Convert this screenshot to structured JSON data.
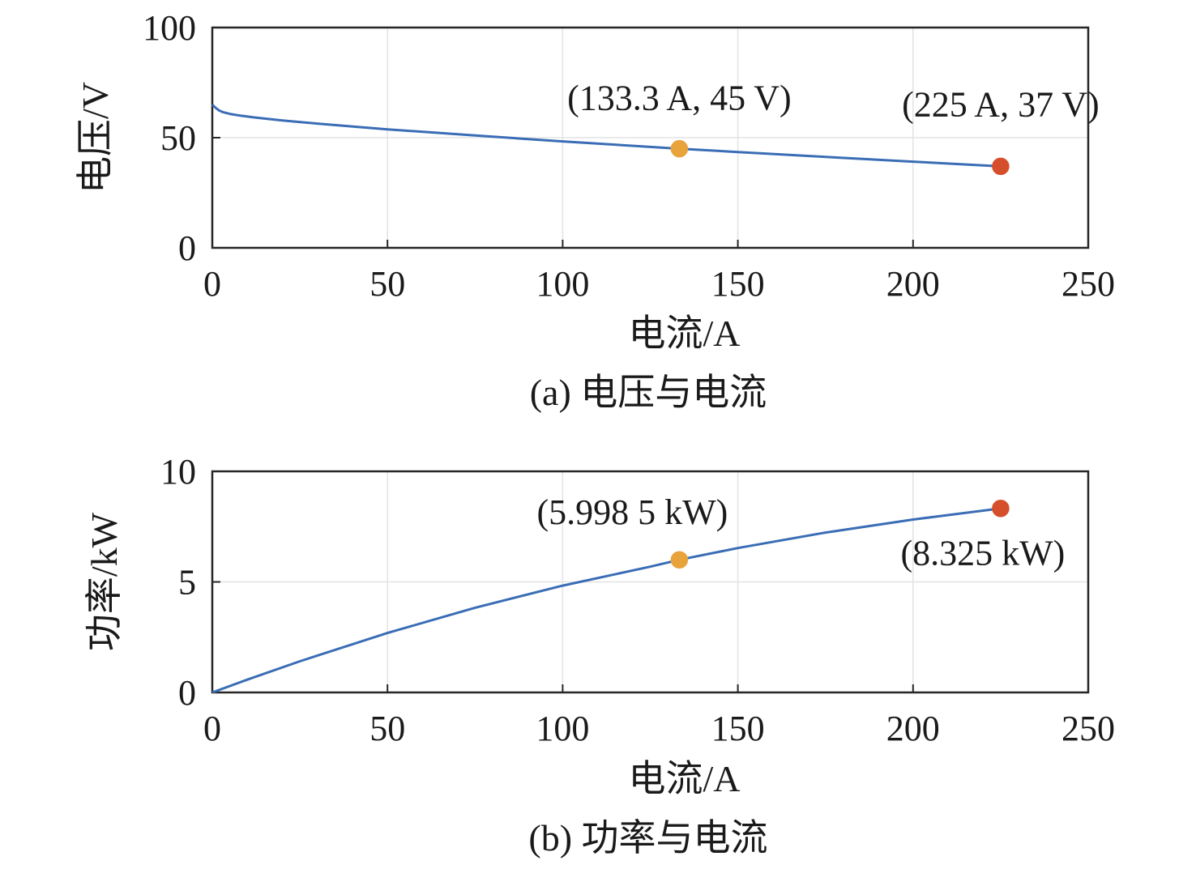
{
  "chart_data": [
    {
      "type": "line",
      "caption": "(a) 电压与电流",
      "xlabel": "电流/A",
      "ylabel": "电压/V",
      "xlim": [
        0,
        250
      ],
      "ylim": [
        0,
        100
      ],
      "xticks": [
        0,
        50,
        100,
        150,
        200,
        250
      ],
      "yticks": [
        0,
        50,
        100
      ],
      "grid": true,
      "line_color": "#3a6db5",
      "series": [
        {
          "x": [
            0,
            1,
            2,
            3,
            5,
            8,
            12,
            20,
            30,
            50,
            75,
            100,
            133.3,
            150,
            175,
            200,
            225
          ],
          "y": [
            65,
            63.5,
            62.3,
            61.6,
            60.8,
            60.0,
            59.2,
            57.8,
            56.4,
            53.8,
            51.0,
            48.3,
            45,
            43.5,
            41.3,
            39.1,
            37
          ]
        }
      ],
      "markers": [
        {
          "x": 133.3,
          "y": 45,
          "color": "#e8a33b",
          "label": "(133.3 A, 45 V)"
        },
        {
          "x": 225,
          "y": 37,
          "color": "#d64f2c",
          "label": "(225 A, 37 V)"
        }
      ]
    },
    {
      "type": "line",
      "caption": "(b) 功率与电流",
      "xlabel": "电流/A",
      "ylabel": "功率/kW",
      "xlim": [
        0,
        250
      ],
      "ylim": [
        0,
        10
      ],
      "xticks": [
        0,
        50,
        100,
        150,
        200,
        250
      ],
      "yticks": [
        0,
        5,
        10
      ],
      "grid": true,
      "line_color": "#3a6db5",
      "series": [
        {
          "x": [
            0,
            10,
            25,
            50,
            75,
            100,
            125,
            133.3,
            150,
            175,
            200,
            225
          ],
          "y": [
            0,
            0.58,
            1.41,
            2.69,
            3.83,
            4.83,
            5.69,
            5.9985,
            6.53,
            7.23,
            7.82,
            8.325
          ]
        }
      ],
      "markers": [
        {
          "x": 133.3,
          "y": 5.9985,
          "color": "#e8a33b",
          "label": "(5.998 5 kW)"
        },
        {
          "x": 225,
          "y": 8.325,
          "color": "#d64f2c",
          "label": "(8.325 kW)"
        }
      ]
    }
  ]
}
